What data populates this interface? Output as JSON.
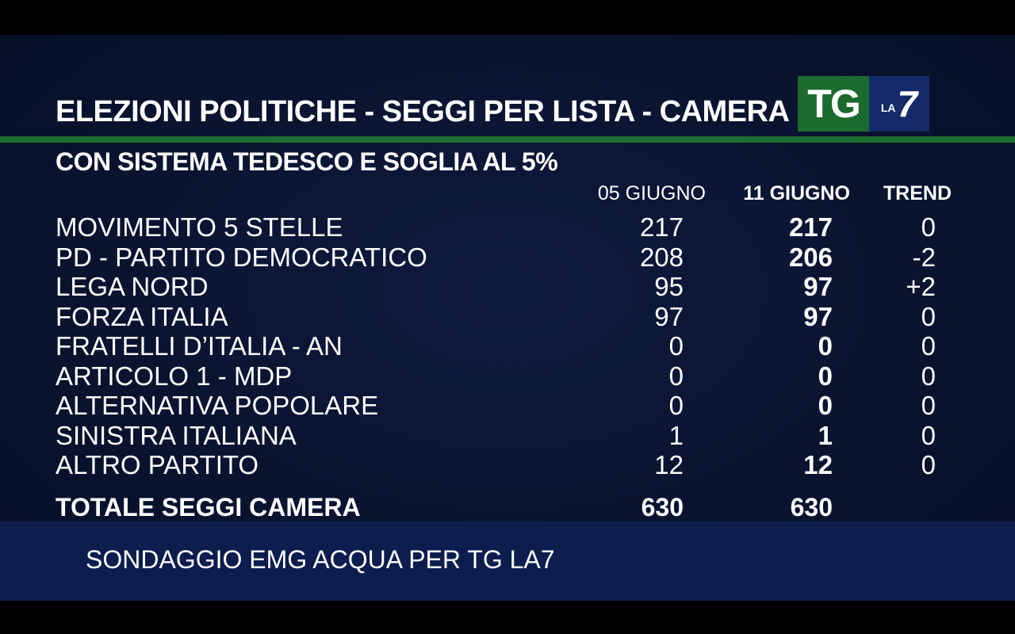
{
  "header": {
    "title": "ELEZIONI POLITICHE - SEGGI  PER  LISTA - CAMERA",
    "subtitle": "CON SISTEMA TEDESCO E SOGLIA AL 5%"
  },
  "logo": {
    "tg": "TG",
    "la": "LA",
    "seven": "7",
    "colors": {
      "tg_bg": "#1c6a2e",
      "la7_bg": "#142a6a"
    }
  },
  "columns": {
    "date1": "05 GIUGNO",
    "date2": "11 GIUGNO",
    "trend": "TREND"
  },
  "chart_data": {
    "type": "table",
    "title": "ELEZIONI POLITICHE - SEGGI  PER  LISTA - CAMERA",
    "subtitle": "CON SISTEMA TEDESCO E SOGLIA AL 5%",
    "columns": [
      "05 GIUGNO",
      "11 GIUGNO",
      "TREND"
    ],
    "rows": [
      {
        "party": "MOVIMENTO 5 STELLE",
        "jun05": "217",
        "jun11": "217",
        "trend": "0"
      },
      {
        "party": "PD - PARTITO DEMOCRATICO",
        "jun05": "208",
        "jun11": "206",
        "trend": "-2"
      },
      {
        "party": "LEGA NORD",
        "jun05": "95",
        "jun11": "97",
        "trend": "+2"
      },
      {
        "party": "FORZA ITALIA",
        "jun05": "97",
        "jun11": "97",
        "trend": "0"
      },
      {
        "party": "FRATELLI D’ITALIA - AN",
        "jun05": "0",
        "jun11": "0",
        "trend": "0"
      },
      {
        "party": "ARTICOLO 1  - MDP",
        "jun05": "0",
        "jun11": "0",
        "trend": "0"
      },
      {
        "party": "ALTERNATIVA POPOLARE",
        "jun05": "0",
        "jun11": "0",
        "trend": "0"
      },
      {
        "party": "SINISTRA ITALIANA",
        "jun05": "1",
        "jun11": "1",
        "trend": "0"
      },
      {
        "party": "ALTRO PARTITO",
        "jun05": "12",
        "jun11": "12",
        "trend": "0"
      }
    ],
    "total": {
      "label": "TOTALE SEGGI CAMERA",
      "jun05": "630",
      "jun11": "630"
    }
  },
  "footer": {
    "source": "SONDAGGIO EMG ACQUA PER TG LA7"
  },
  "colors": {
    "background": "#0a1430",
    "green_rule": "#1e6e2f",
    "footer_band": "#0c1d4e",
    "text": "#ffffff"
  }
}
